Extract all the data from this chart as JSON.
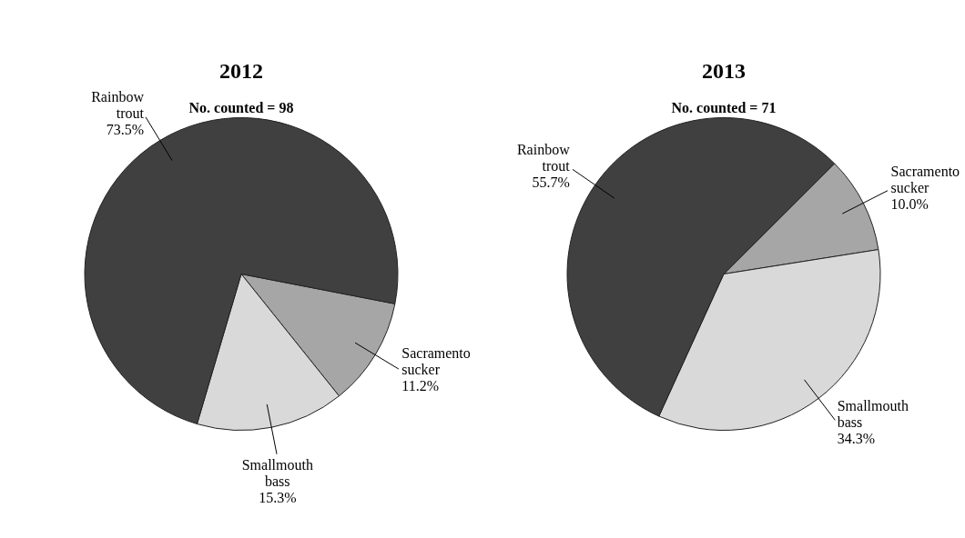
{
  "chart_data": [
    {
      "type": "pie",
      "title": "2012",
      "subtitle": "No. counted = 98",
      "categories": [
        "Sacramento sucker",
        "Smallmouth bass",
        "Rainbow trout"
      ],
      "values": [
        11.2,
        15.3,
        73.5
      ],
      "value_labels": [
        "11.2%",
        "15.3%",
        "73.5%"
      ],
      "colors": [
        "#a6a6a6",
        "#d9d9d9",
        "#404040"
      ],
      "legend": false
    },
    {
      "type": "pie",
      "title": "2013",
      "subtitle": "No. counted = 71",
      "categories": [
        "Sacramento sucker",
        "Smallmouth bass",
        "Rainbow trout"
      ],
      "values": [
        10.0,
        34.3,
        55.7
      ],
      "value_labels": [
        "10.0%",
        "34.3%",
        "55.7%"
      ],
      "colors": [
        "#a6a6a6",
        "#d9d9d9",
        "#404040"
      ],
      "legend": false
    }
  ]
}
